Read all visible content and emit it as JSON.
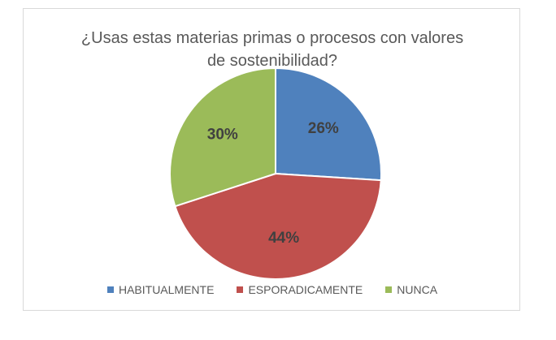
{
  "chart_data": {
    "type": "pie",
    "title_lines": [
      "¿Usas estas materias primas o procesos con valores",
      "de sostenibilidad?"
    ],
    "categories": [
      "HABITUALMENTE",
      "ESPORADICAMENTE",
      "NUNCA"
    ],
    "values": [
      26,
      44,
      30
    ],
    "data_labels": [
      "26%",
      "44%",
      "30%"
    ],
    "colors": [
      "#4f81bd",
      "#c0504d",
      "#9bbb59"
    ],
    "legend_position": "bottom",
    "start_angle": "12 o'clock, clockwise"
  }
}
